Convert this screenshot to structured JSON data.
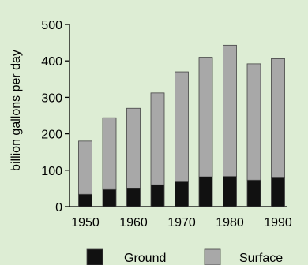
{
  "chart_data": {
    "type": "bar",
    "stacked": true,
    "categories": [
      "1950",
      "1955",
      "1960",
      "1965",
      "1970",
      "1975",
      "1980",
      "1985",
      "1990"
    ],
    "x_tick_labels": [
      "1950",
      "1960",
      "1970",
      "1980",
      "1990"
    ],
    "series": [
      {
        "name": "Ground",
        "values": [
          34,
          47,
          50,
          60,
          68,
          82,
          83,
          73,
          79
        ]
      },
      {
        "name": "Surface",
        "values": [
          146,
          197,
          220,
          252,
          302,
          328,
          360,
          319,
          327
        ]
      }
    ],
    "title": "",
    "xlabel": "",
    "ylabel": "billion gallons per day",
    "ylim": [
      0,
      500
    ],
    "y_ticks": [
      0,
      100,
      200,
      300,
      400,
      500
    ],
    "grid": false,
    "legend_position": "bottom",
    "colors": {
      "Ground": "#111111",
      "Surface": "#a8a8a8",
      "background": "#ddedd4",
      "bar_edge": "#444444"
    }
  }
}
